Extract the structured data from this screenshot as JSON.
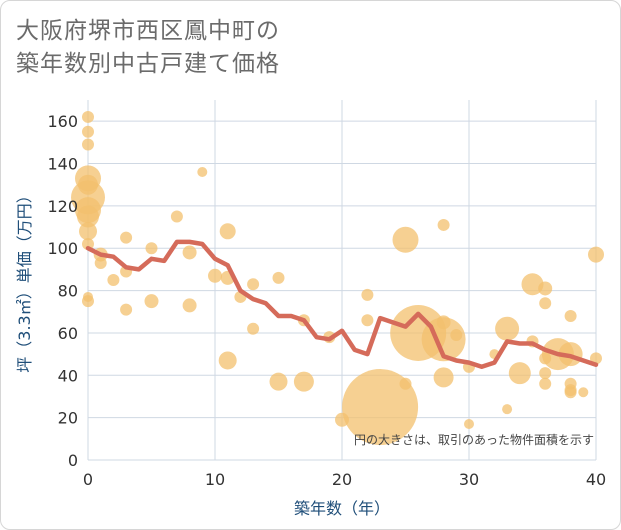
{
  "title": {
    "line1": "大阪府堺市西区鳳中町の",
    "line2": "築年数別中古戸建て価格"
  },
  "colors": {
    "bubble": "#f3c06e",
    "line": "#d56b5a",
    "grid": "#cfd8e3",
    "axis_text": "#1f4e79"
  },
  "chart_data": {
    "type": "scatter",
    "xlabel": "築年数（年）",
    "ylabel": "坪（3.3㎡）単価（万円）",
    "xlim": [
      0,
      40
    ],
    "ylim": [
      0,
      170
    ],
    "xticks": [
      0,
      10,
      20,
      30,
      40
    ],
    "yticks": [
      0,
      20,
      40,
      60,
      80,
      100,
      120,
      140,
      160
    ],
    "grid": true,
    "annotation": "円の大きさは、取引のあった物件面積を示す",
    "points": [
      {
        "x": 0,
        "y": 162,
        "size": 6
      },
      {
        "x": 0,
        "y": 155,
        "size": 6
      },
      {
        "x": 0,
        "y": 149,
        "size": 6
      },
      {
        "x": 0,
        "y": 133,
        "size": 13
      },
      {
        "x": 0,
        "y": 130,
        "size": 10
      },
      {
        "x": 0,
        "y": 124,
        "size": 17
      },
      {
        "x": 0,
        "y": 118,
        "size": 13
      },
      {
        "x": 0,
        "y": 115,
        "size": 11
      },
      {
        "x": 0,
        "y": 108,
        "size": 9
      },
      {
        "x": 0,
        "y": 102,
        "size": 6
      },
      {
        "x": 0,
        "y": 77,
        "size": 5
      },
      {
        "x": 0,
        "y": 75,
        "size": 6
      },
      {
        "x": 1,
        "y": 97,
        "size": 7
      },
      {
        "x": 1,
        "y": 93,
        "size": 6
      },
      {
        "x": 2,
        "y": 85,
        "size": 6
      },
      {
        "x": 3,
        "y": 105,
        "size": 6
      },
      {
        "x": 3,
        "y": 89,
        "size": 6
      },
      {
        "x": 3,
        "y": 71,
        "size": 6
      },
      {
        "x": 5,
        "y": 100,
        "size": 6
      },
      {
        "x": 5,
        "y": 75,
        "size": 7
      },
      {
        "x": 7,
        "y": 115,
        "size": 6
      },
      {
        "x": 8,
        "y": 98,
        "size": 7
      },
      {
        "x": 8,
        "y": 73,
        "size": 7
      },
      {
        "x": 9,
        "y": 136,
        "size": 5
      },
      {
        "x": 10,
        "y": 87,
        "size": 7
      },
      {
        "x": 11,
        "y": 108,
        "size": 8
      },
      {
        "x": 11,
        "y": 86,
        "size": 7
      },
      {
        "x": 11,
        "y": 47,
        "size": 9
      },
      {
        "x": 12,
        "y": 77,
        "size": 6
      },
      {
        "x": 13,
        "y": 83,
        "size": 6
      },
      {
        "x": 13,
        "y": 62,
        "size": 6
      },
      {
        "x": 15,
        "y": 86,
        "size": 6
      },
      {
        "x": 15,
        "y": 37,
        "size": 9
      },
      {
        "x": 17,
        "y": 66,
        "size": 6
      },
      {
        "x": 17,
        "y": 37,
        "size": 10
      },
      {
        "x": 19,
        "y": 58,
        "size": 6
      },
      {
        "x": 20,
        "y": 19,
        "size": 7
      },
      {
        "x": 22,
        "y": 78,
        "size": 6
      },
      {
        "x": 22,
        "y": 66,
        "size": 6
      },
      {
        "x": 23,
        "y": 25,
        "size": 38
      },
      {
        "x": 25,
        "y": 104,
        "size": 13
      },
      {
        "x": 25,
        "y": 36,
        "size": 6
      },
      {
        "x": 26,
        "y": 60,
        "size": 28
      },
      {
        "x": 28,
        "y": 111,
        "size": 6
      },
      {
        "x": 28,
        "y": 65,
        "size": 7
      },
      {
        "x": 28,
        "y": 57,
        "size": 22
      },
      {
        "x": 28,
        "y": 39,
        "size": 10
      },
      {
        "x": 29,
        "y": 59,
        "size": 6
      },
      {
        "x": 30,
        "y": 44,
        "size": 6
      },
      {
        "x": 30,
        "y": 17,
        "size": 5
      },
      {
        "x": 32,
        "y": 50,
        "size": 5
      },
      {
        "x": 33,
        "y": 62,
        "size": 12
      },
      {
        "x": 33,
        "y": 24,
        "size": 5
      },
      {
        "x": 34,
        "y": 41,
        "size": 11
      },
      {
        "x": 35,
        "y": 83,
        "size": 11
      },
      {
        "x": 35,
        "y": 56,
        "size": 6
      },
      {
        "x": 36,
        "y": 81,
        "size": 7
      },
      {
        "x": 36,
        "y": 74,
        "size": 6
      },
      {
        "x": 36,
        "y": 48,
        "size": 6
      },
      {
        "x": 36,
        "y": 41,
        "size": 6
      },
      {
        "x": 36,
        "y": 36,
        "size": 6
      },
      {
        "x": 37,
        "y": 50,
        "size": 16
      },
      {
        "x": 38,
        "y": 68,
        "size": 6
      },
      {
        "x": 38,
        "y": 50,
        "size": 12
      },
      {
        "x": 38,
        "y": 36,
        "size": 6
      },
      {
        "x": 38,
        "y": 33,
        "size": 6
      },
      {
        "x": 38,
        "y": 32,
        "size": 6
      },
      {
        "x": 39,
        "y": 32,
        "size": 5
      },
      {
        "x": 40,
        "y": 97,
        "size": 8
      },
      {
        "x": 40,
        "y": 48,
        "size": 6
      }
    ],
    "series": [
      {
        "type": "line",
        "x": [
          0,
          1,
          2,
          3,
          4,
          5,
          6,
          7,
          8,
          9,
          10,
          11,
          12,
          13,
          14,
          15,
          16,
          17,
          18,
          19,
          20,
          21,
          22,
          23,
          24,
          25,
          26,
          27,
          28,
          29,
          30,
          31,
          32,
          33,
          34,
          35,
          36,
          37,
          38,
          39,
          40
        ],
        "y": [
          100,
          97,
          96,
          91,
          90,
          95,
          94,
          103,
          103,
          102,
          95,
          92,
          80,
          76,
          74,
          68,
          68,
          66,
          58,
          57,
          61,
          52,
          50,
          67,
          65,
          63,
          69,
          63,
          49,
          47,
          46,
          44,
          46,
          56,
          55,
          55,
          52,
          50,
          49,
          47,
          45
        ]
      }
    ]
  }
}
